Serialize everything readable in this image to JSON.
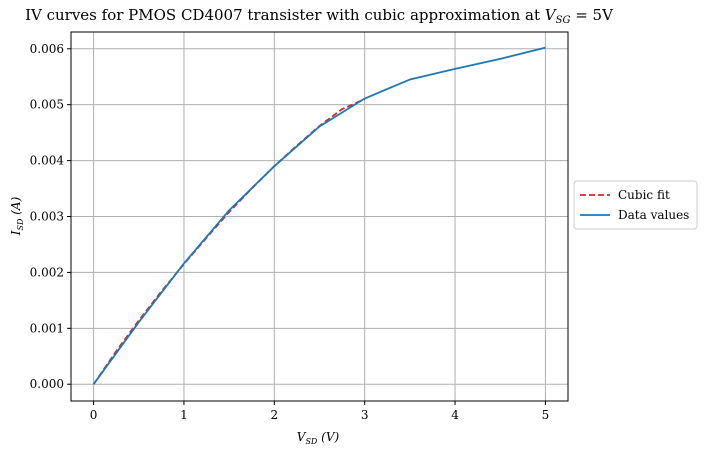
{
  "chart_data": {
    "type": "line",
    "title": "IV curves for PMOS CD4007 transister with cubic approximation at V_SG = 5V",
    "title_parts": {
      "prefix": "IV curves for PMOS CD4007 transister with cubic approximation at ",
      "var": "V",
      "sub": "SG",
      "suffix": " = 5V"
    },
    "xlabel": "V_SD (V)",
    "ylabel": "I_SD (A)",
    "xlim": [
      -0.25,
      5.25
    ],
    "ylim": [
      -0.0003,
      0.0063
    ],
    "xticks": [
      0,
      1,
      2,
      3,
      4,
      5
    ],
    "xtick_labels": [
      "0",
      "1",
      "2",
      "3",
      "4",
      "5"
    ],
    "yticks": [
      0.0,
      0.001,
      0.002,
      0.003,
      0.004,
      0.005,
      0.006
    ],
    "ytick_labels": [
      "0.000",
      "0.001",
      "0.002",
      "0.003",
      "0.004",
      "0.005",
      "0.006"
    ],
    "grid": true,
    "legend_position": "outside-right",
    "series": [
      {
        "name": "Cubic fit",
        "color": "#d62728",
        "style": "dashed",
        "x": [
          0,
          0.25,
          0.5,
          0.75,
          1.0,
          1.25,
          1.5,
          1.75,
          2.0,
          2.25,
          2.5,
          2.75,
          3.0
        ],
        "y": [
          0.0,
          0.00059,
          0.00114,
          0.00166,
          0.00215,
          0.00262,
          0.00308,
          0.0035,
          0.0039,
          0.00427,
          0.00462,
          0.00492,
          0.0051
        ]
      },
      {
        "name": "Data values",
        "color": "#1f77b4",
        "style": "solid",
        "x": [
          0,
          0.5,
          1.0,
          1.5,
          2.0,
          2.5,
          3.0,
          3.5,
          4.0,
          4.5,
          5.0
        ],
        "y": [
          0.0,
          0.00111,
          0.00216,
          0.00311,
          0.0039,
          0.00461,
          0.00511,
          0.00545,
          0.00564,
          0.00582,
          0.00602
        ]
      }
    ]
  }
}
